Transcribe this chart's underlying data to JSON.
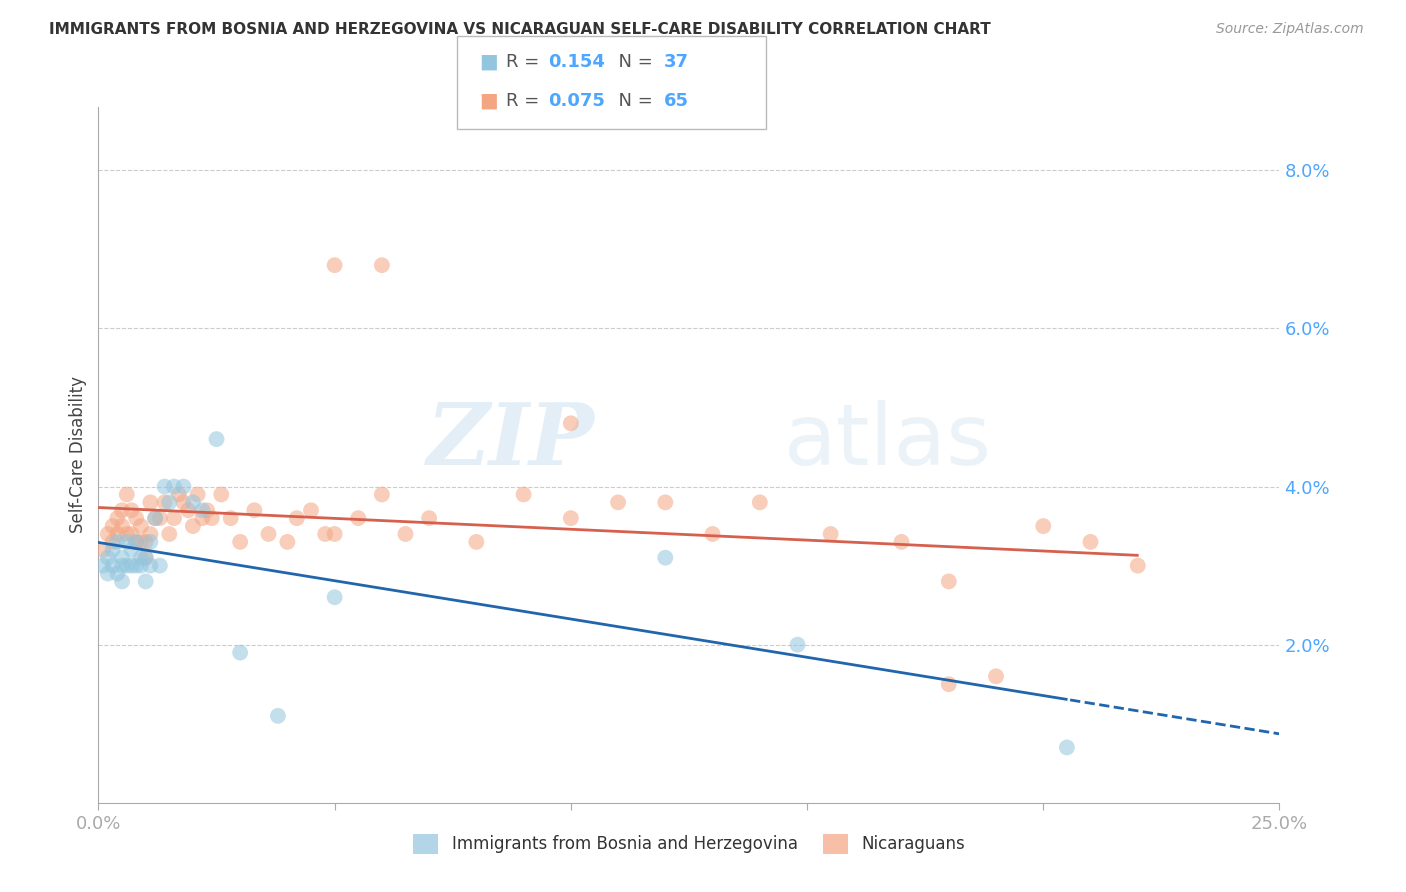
{
  "title": "IMMIGRANTS FROM BOSNIA AND HERZEGOVINA VS NICARAGUAN SELF-CARE DISABILITY CORRELATION CHART",
  "source": "Source: ZipAtlas.com",
  "ylabel": "Self-Care Disability",
  "xmin": 0.0,
  "xmax": 0.25,
  "ymin": 0.0,
  "ymax": 0.088,
  "yticks": [
    0.02,
    0.04,
    0.06,
    0.08
  ],
  "ytick_labels": [
    "2.0%",
    "4.0%",
    "6.0%",
    "8.0%"
  ],
  "legend_r1": "0.154",
  "legend_n1": "37",
  "legend_r2": "0.075",
  "legend_n2": "65",
  "blue_color": "#92c5de",
  "pink_color": "#f4a582",
  "blue_line_color": "#2166ac",
  "pink_line_color": "#d6604d",
  "axis_color": "#4da6ff",
  "watermark_zip": "ZIP",
  "watermark_atlas": "atlas",
  "blue_x": [
    0.001,
    0.002,
    0.002,
    0.003,
    0.003,
    0.004,
    0.004,
    0.005,
    0.005,
    0.005,
    0.006,
    0.006,
    0.007,
    0.007,
    0.008,
    0.008,
    0.009,
    0.009,
    0.01,
    0.01,
    0.011,
    0.011,
    0.012,
    0.013,
    0.014,
    0.015,
    0.016,
    0.018,
    0.02,
    0.022,
    0.025,
    0.03,
    0.038,
    0.05,
    0.12,
    0.148,
    0.205
  ],
  "blue_y": [
    0.03,
    0.031,
    0.029,
    0.032,
    0.03,
    0.033,
    0.029,
    0.031,
    0.03,
    0.028,
    0.033,
    0.03,
    0.032,
    0.03,
    0.033,
    0.03,
    0.031,
    0.03,
    0.031,
    0.028,
    0.033,
    0.03,
    0.036,
    0.03,
    0.04,
    0.038,
    0.04,
    0.04,
    0.038,
    0.037,
    0.046,
    0.019,
    0.011,
    0.026,
    0.031,
    0.02,
    0.007
  ],
  "pink_x": [
    0.001,
    0.002,
    0.003,
    0.003,
    0.004,
    0.004,
    0.005,
    0.005,
    0.006,
    0.006,
    0.007,
    0.007,
    0.008,
    0.008,
    0.009,
    0.009,
    0.01,
    0.01,
    0.011,
    0.011,
    0.012,
    0.013,
    0.014,
    0.015,
    0.016,
    0.017,
    0.018,
    0.019,
    0.02,
    0.021,
    0.022,
    0.023,
    0.024,
    0.026,
    0.028,
    0.03,
    0.033,
    0.036,
    0.04,
    0.042,
    0.045,
    0.048,
    0.05,
    0.055,
    0.06,
    0.065,
    0.07,
    0.08,
    0.09,
    0.1,
    0.11,
    0.12,
    0.13,
    0.14,
    0.155,
    0.17,
    0.18,
    0.19,
    0.2,
    0.21,
    0.05,
    0.06,
    0.1,
    0.18,
    0.22
  ],
  "pink_y": [
    0.032,
    0.034,
    0.033,
    0.035,
    0.036,
    0.034,
    0.037,
    0.035,
    0.039,
    0.034,
    0.037,
    0.034,
    0.036,
    0.033,
    0.035,
    0.033,
    0.033,
    0.031,
    0.034,
    0.038,
    0.036,
    0.036,
    0.038,
    0.034,
    0.036,
    0.039,
    0.038,
    0.037,
    0.035,
    0.039,
    0.036,
    0.037,
    0.036,
    0.039,
    0.036,
    0.033,
    0.037,
    0.034,
    0.033,
    0.036,
    0.037,
    0.034,
    0.034,
    0.036,
    0.039,
    0.034,
    0.036,
    0.033,
    0.039,
    0.036,
    0.038,
    0.038,
    0.034,
    0.038,
    0.034,
    0.033,
    0.028,
    0.016,
    0.035,
    0.033,
    0.068,
    0.068,
    0.048,
    0.015,
    0.03
  ]
}
